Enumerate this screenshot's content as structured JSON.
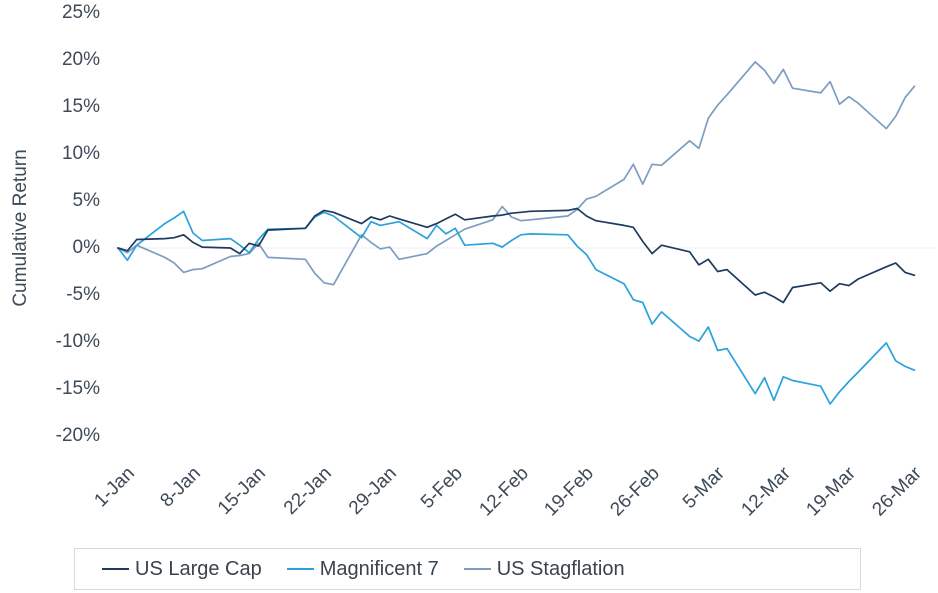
{
  "chart_data": {
    "type": "line",
    "title": "",
    "xlabel": "",
    "ylabel": "Cumulative Return",
    "legend_position": "bottom",
    "grid": "horizontal line at 0% only",
    "gridline_color": "#e9ecef",
    "text_color": "#3e4a57",
    "y_axis": {
      "tick_labels": [
        "25%",
        "20%",
        "15%",
        "10%",
        "5%",
        "0%",
        "-5%",
        "-10%",
        "-15%",
        "-20%"
      ],
      "tick_values": [
        25,
        20,
        15,
        10,
        5,
        0,
        -5,
        -10,
        -15,
        -20
      ],
      "ylim": [
        -20,
        25
      ]
    },
    "x_axis": {
      "tick_labels": [
        "1-Jan",
        "8-Jan",
        "15-Jan",
        "22-Jan",
        "29-Jan",
        "5-Feb",
        "12-Feb",
        "19-Feb",
        "26-Feb",
        "5-Mar",
        "12-Mar",
        "19-Mar",
        "26-Mar"
      ],
      "tick_days": [
        0,
        7,
        14,
        21,
        28,
        35,
        42,
        49,
        56,
        63,
        70,
        77,
        84
      ],
      "x_domain_days": [
        0,
        85
      ]
    },
    "series": [
      {
        "name": "US Stagflation",
        "color": "#7d9dc0",
        "points": [
          [
            0,
            0
          ],
          [
            1,
            -0.5
          ],
          [
            2,
            0.3
          ],
          [
            5,
            -1.0
          ],
          [
            6,
            -1.6
          ],
          [
            7,
            -2.6
          ],
          [
            8,
            -2.3
          ],
          [
            9,
            -2.2
          ],
          [
            12,
            -0.9
          ],
          [
            13,
            -0.8
          ],
          [
            14,
            -0.6
          ],
          [
            15,
            0.5
          ],
          [
            16,
            -1.0
          ],
          [
            20,
            -1.2
          ],
          [
            21,
            -2.7
          ],
          [
            22,
            -3.7
          ],
          [
            23,
            -3.9
          ],
          [
            26,
            1.4
          ],
          [
            27,
            0.6
          ],
          [
            28,
            -0.1
          ],
          [
            29,
            0.1
          ],
          [
            30,
            -1.2
          ],
          [
            33,
            -0.6
          ],
          [
            34,
            0.2
          ],
          [
            35,
            0.8
          ],
          [
            36,
            1.4
          ],
          [
            37,
            2.0
          ],
          [
            40,
            3.0
          ],
          [
            41,
            4.4
          ],
          [
            42,
            3.3
          ],
          [
            43,
            2.9
          ],
          [
            44,
            3.0
          ],
          [
            48,
            3.4
          ],
          [
            49,
            4.1
          ],
          [
            50,
            5.2
          ],
          [
            51,
            5.5
          ],
          [
            54,
            7.3
          ],
          [
            55,
            8.9
          ],
          [
            56,
            6.8
          ],
          [
            57,
            8.9
          ],
          [
            58,
            8.8
          ],
          [
            61,
            11.4
          ],
          [
            62,
            10.6
          ],
          [
            63,
            13.8
          ],
          [
            64,
            15.2
          ],
          [
            65,
            16.3
          ],
          [
            68,
            19.8
          ],
          [
            69,
            18.9
          ],
          [
            70,
            17.5
          ],
          [
            71,
            19.0
          ],
          [
            72,
            17.0
          ],
          [
            75,
            16.5
          ],
          [
            76,
            17.7
          ],
          [
            77,
            15.3
          ],
          [
            78,
            16.1
          ],
          [
            79,
            15.4
          ],
          [
            82,
            12.7
          ],
          [
            83,
            14.0
          ],
          [
            84,
            16.0
          ],
          [
            85,
            17.2
          ]
        ]
      },
      {
        "name": "Magnificent 7",
        "color": "#2aa2db",
        "points": [
          [
            0,
            0
          ],
          [
            1,
            -1.3
          ],
          [
            2,
            0.3
          ],
          [
            5,
            2.6
          ],
          [
            6,
            3.2
          ],
          [
            7,
            3.9
          ],
          [
            8,
            1.6
          ],
          [
            9,
            0.8
          ],
          [
            12,
            1.0
          ],
          [
            13,
            0.3
          ],
          [
            14,
            -0.5
          ],
          [
            15,
            0.9
          ],
          [
            16,
            2.0
          ],
          [
            20,
            2.1
          ],
          [
            21,
            3.3
          ],
          [
            22,
            3.8
          ],
          [
            23,
            3.4
          ],
          [
            26,
            1.1
          ],
          [
            27,
            2.8
          ],
          [
            28,
            2.4
          ],
          [
            29,
            2.6
          ],
          [
            30,
            2.8
          ],
          [
            33,
            1.0
          ],
          [
            34,
            2.4
          ],
          [
            35,
            1.5
          ],
          [
            36,
            2.1
          ],
          [
            37,
            0.3
          ],
          [
            40,
            0.5
          ],
          [
            41,
            0.1
          ],
          [
            42,
            0.8
          ],
          [
            43,
            1.4
          ],
          [
            44,
            1.5
          ],
          [
            48,
            1.4
          ],
          [
            49,
            0.2
          ],
          [
            50,
            -0.7
          ],
          [
            51,
            -2.3
          ],
          [
            54,
            -3.8
          ],
          [
            55,
            -5.5
          ],
          [
            56,
            -5.8
          ],
          [
            57,
            -8.1
          ],
          [
            58,
            -6.8
          ],
          [
            61,
            -9.4
          ],
          [
            62,
            -9.9
          ],
          [
            63,
            -8.4
          ],
          [
            64,
            -10.9
          ],
          [
            65,
            -10.7
          ],
          [
            68,
            -15.5
          ],
          [
            69,
            -13.8
          ],
          [
            70,
            -16.2
          ],
          [
            71,
            -13.7
          ],
          [
            72,
            -14.1
          ],
          [
            75,
            -14.7
          ],
          [
            76,
            -16.6
          ],
          [
            77,
            -15.3
          ],
          [
            78,
            -14.2
          ],
          [
            79,
            -13.2
          ],
          [
            82,
            -10.1
          ],
          [
            83,
            -12.0
          ],
          [
            84,
            -12.6
          ],
          [
            85,
            -13.0
          ]
        ]
      },
      {
        "name": "US Large Cap",
        "color": "#1f3a5f",
        "points": [
          [
            0,
            0
          ],
          [
            1,
            -0.3
          ],
          [
            2,
            0.9
          ],
          [
            5,
            1.0
          ],
          [
            6,
            1.1
          ],
          [
            7,
            1.4
          ],
          [
            8,
            0.6
          ],
          [
            9,
            0.1
          ],
          [
            12,
            0.0
          ],
          [
            13,
            -0.6
          ],
          [
            14,
            0.5
          ],
          [
            15,
            0.2
          ],
          [
            16,
            1.9
          ],
          [
            20,
            2.1
          ],
          [
            21,
            3.4
          ],
          [
            22,
            4.0
          ],
          [
            23,
            3.8
          ],
          [
            26,
            2.6
          ],
          [
            27,
            3.3
          ],
          [
            28,
            3.0
          ],
          [
            29,
            3.4
          ],
          [
            30,
            3.1
          ],
          [
            33,
            2.2
          ],
          [
            34,
            2.6
          ],
          [
            35,
            3.1
          ],
          [
            36,
            3.6
          ],
          [
            37,
            3.0
          ],
          [
            40,
            3.4
          ],
          [
            41,
            3.5
          ],
          [
            42,
            3.7
          ],
          [
            43,
            3.8
          ],
          [
            44,
            3.9
          ],
          [
            48,
            4.0
          ],
          [
            49,
            4.2
          ],
          [
            50,
            3.4
          ],
          [
            51,
            2.9
          ],
          [
            54,
            2.4
          ],
          [
            55,
            2.2
          ],
          [
            56,
            0.7
          ],
          [
            57,
            -0.6
          ],
          [
            58,
            0.3
          ],
          [
            61,
            -0.4
          ],
          [
            62,
            -1.8
          ],
          [
            63,
            -1.2
          ],
          [
            64,
            -2.5
          ],
          [
            65,
            -2.3
          ],
          [
            68,
            -5.0
          ],
          [
            69,
            -4.7
          ],
          [
            70,
            -5.2
          ],
          [
            71,
            -5.8
          ],
          [
            72,
            -4.2
          ],
          [
            75,
            -3.7
          ],
          [
            76,
            -4.6
          ],
          [
            77,
            -3.8
          ],
          [
            78,
            -4.0
          ],
          [
            79,
            -3.3
          ],
          [
            82,
            -2.0
          ],
          [
            83,
            -1.6
          ],
          [
            84,
            -2.6
          ],
          [
            85,
            -2.9
          ]
        ]
      }
    ],
    "legend_order": [
      "US Large Cap",
      "Magnificent 7",
      "US Stagflation"
    ]
  }
}
